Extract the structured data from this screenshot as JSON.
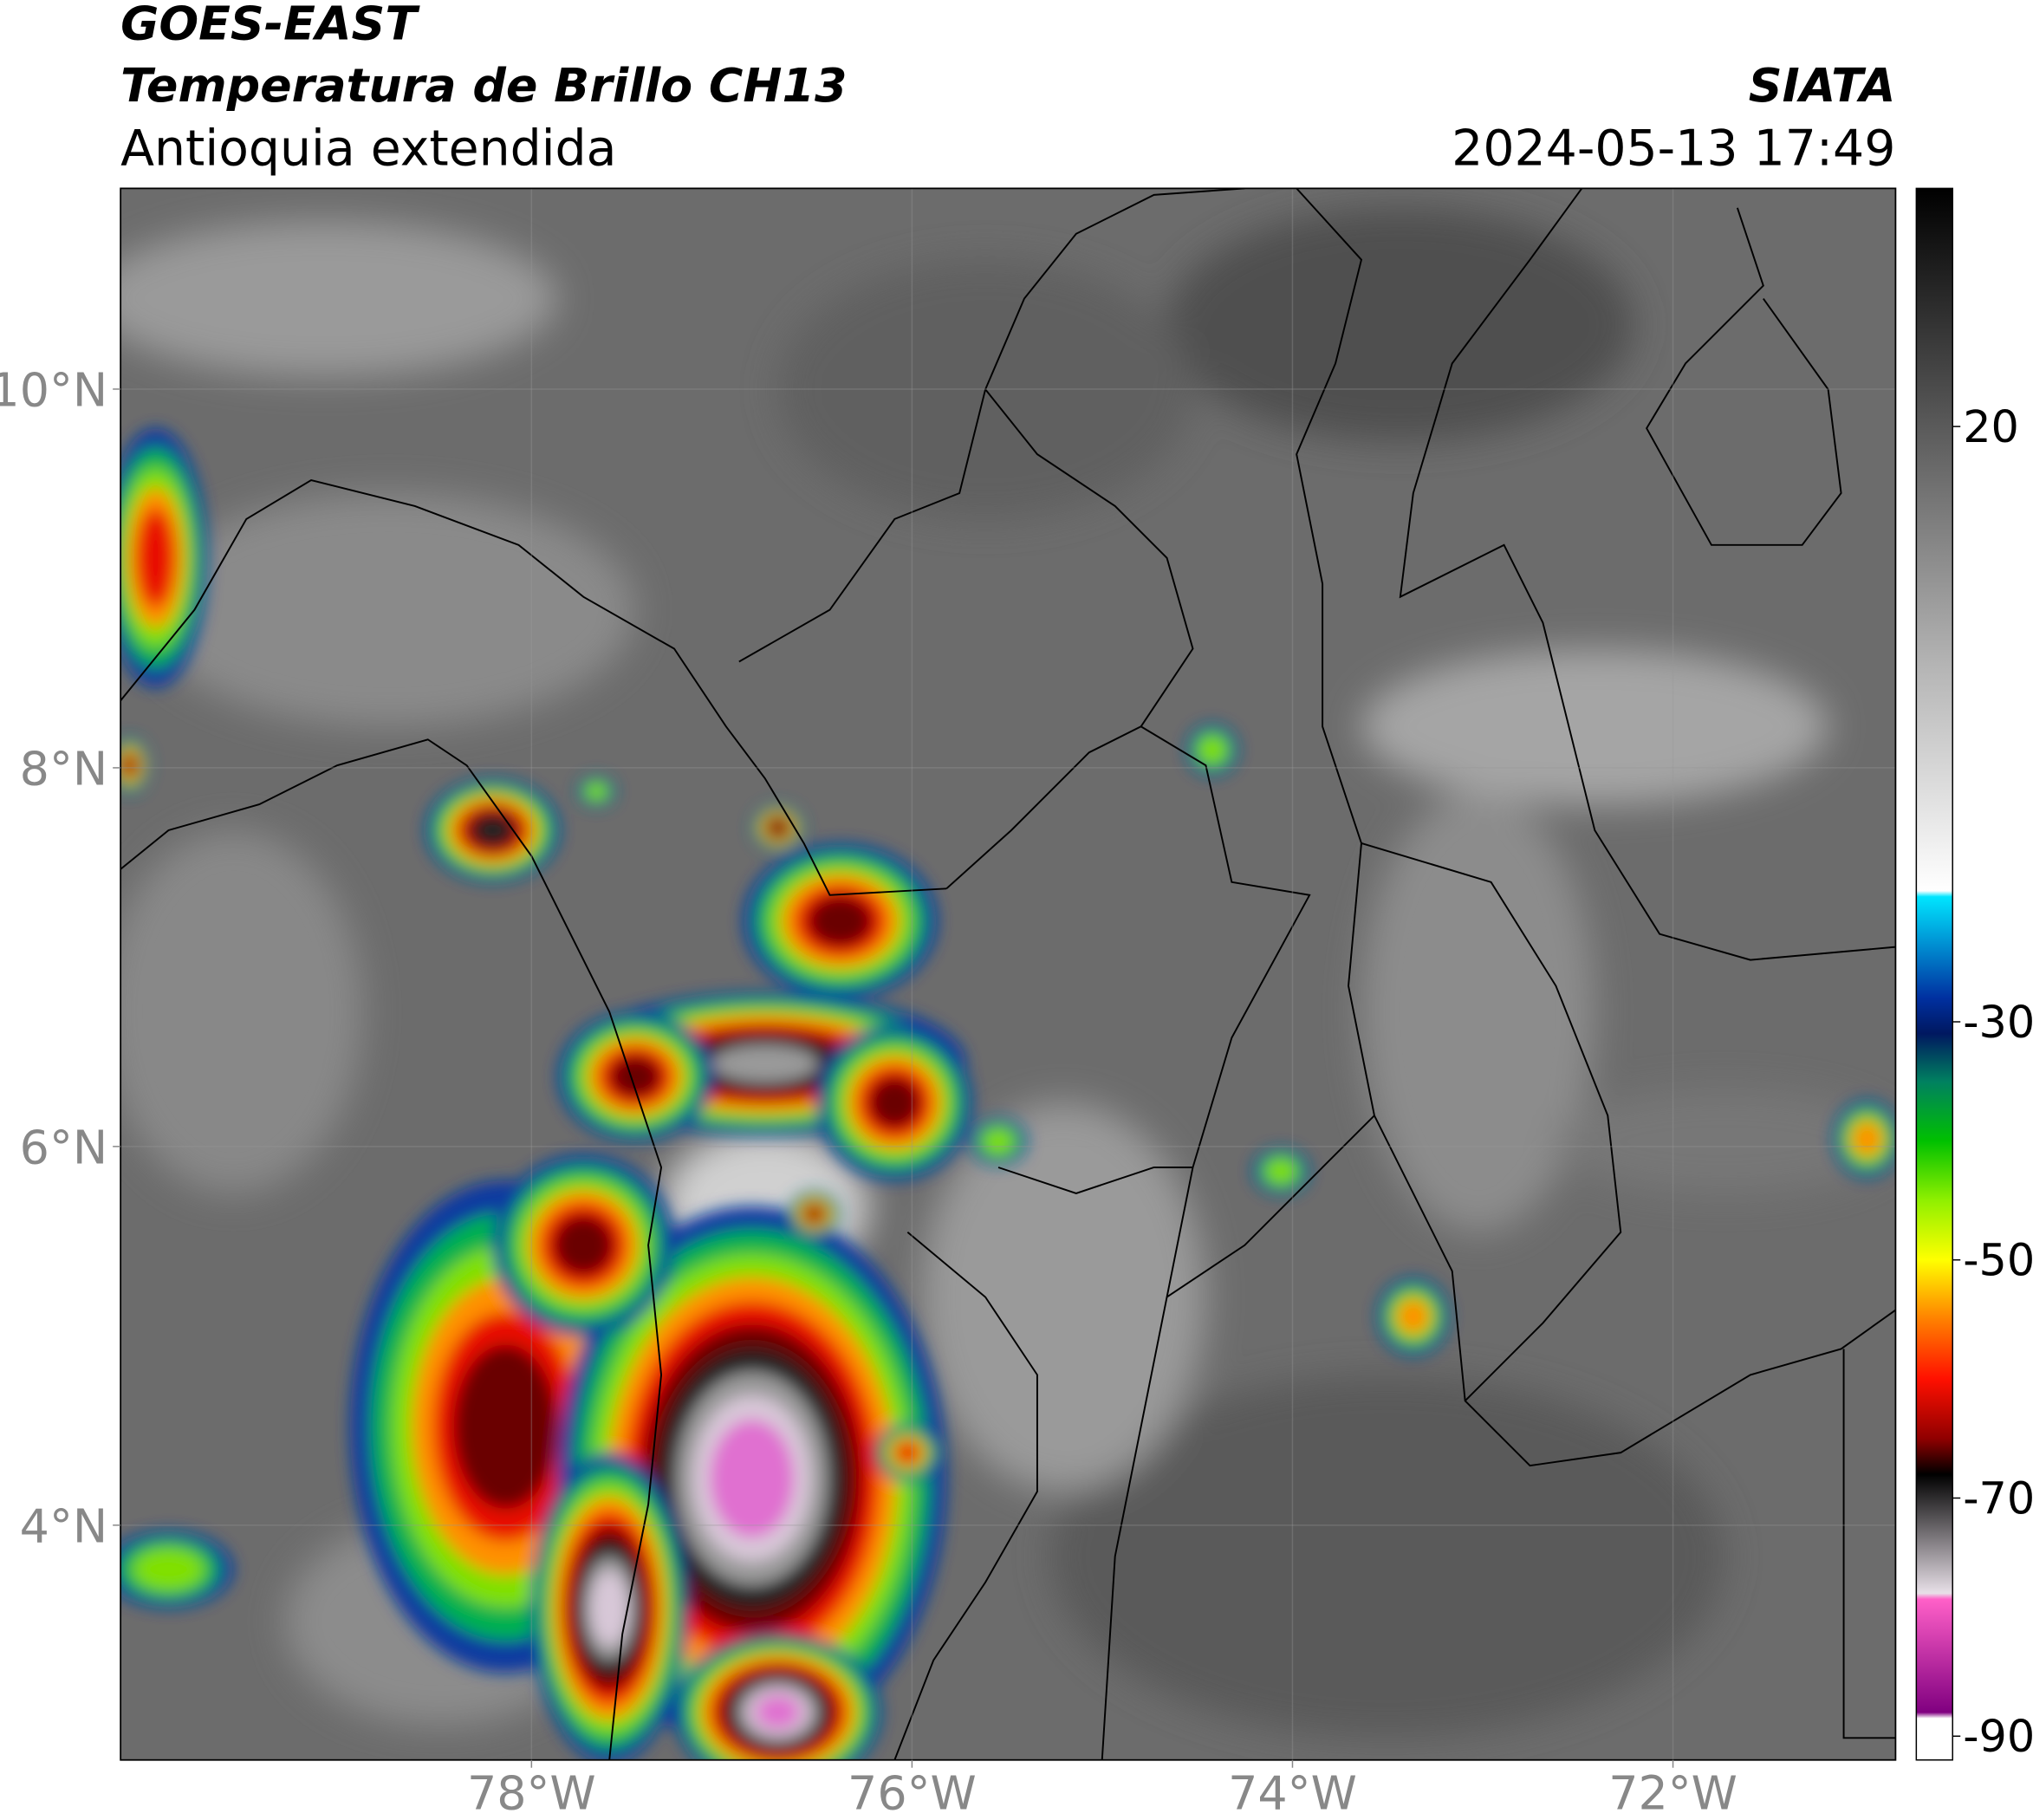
{
  "header": {
    "satellite": "GOES-EAST",
    "product": "Temperatura de Brillo CH13",
    "region": "Antioquia extendida",
    "source": "SIATA",
    "datetime": "2024-05-13 17:49"
  },
  "map": {
    "xlim": [
      -80.16,
      -70.83
    ],
    "ylim": [
      2.76,
      11.06
    ],
    "xticks": [
      {
        "value": -78,
        "label": "78°W"
      },
      {
        "value": -76,
        "label": "76°W"
      },
      {
        "value": -74,
        "label": "74°W"
      },
      {
        "value": -72,
        "label": "72°W"
      }
    ],
    "yticks": [
      {
        "value": 4,
        "label": "4°N"
      },
      {
        "value": 6,
        "label": "6°N"
      },
      {
        "value": 8,
        "label": "8°N"
      },
      {
        "value": 10,
        "label": "10°N"
      }
    ],
    "grid": true
  },
  "colorbar": {
    "lim": [
      -92,
      40
    ],
    "ticks": [
      20,
      -30,
      -50,
      -70,
      -90
    ],
    "stops": [
      {
        "value": 40,
        "color": "#000000"
      },
      {
        "value": 20,
        "color": "#5a5a5a"
      },
      {
        "value": 0,
        "color": "#b4b4b4"
      },
      {
        "value": -19,
        "color": "#ffffff"
      },
      {
        "value": -19.5,
        "color": "#00e5ff"
      },
      {
        "value": -28,
        "color": "#0030a0"
      },
      {
        "value": -31,
        "color": "#001860"
      },
      {
        "value": -35,
        "color": "#008060"
      },
      {
        "value": -40,
        "color": "#00c000"
      },
      {
        "value": -45,
        "color": "#90f000"
      },
      {
        "value": -50,
        "color": "#ffff00"
      },
      {
        "value": -55,
        "color": "#ff8000"
      },
      {
        "value": -60,
        "color": "#ff1000"
      },
      {
        "value": -65,
        "color": "#900000"
      },
      {
        "value": -68,
        "color": "#000000"
      },
      {
        "value": -78,
        "color": "#e8e0e8"
      },
      {
        "value": -78.5,
        "color": "#ff60c8"
      },
      {
        "value": -88,
        "color": "#800080"
      },
      {
        "value": -88.5,
        "color": "#ffffff"
      },
      {
        "value": -92,
        "color": "#ffffff"
      }
    ]
  }
}
